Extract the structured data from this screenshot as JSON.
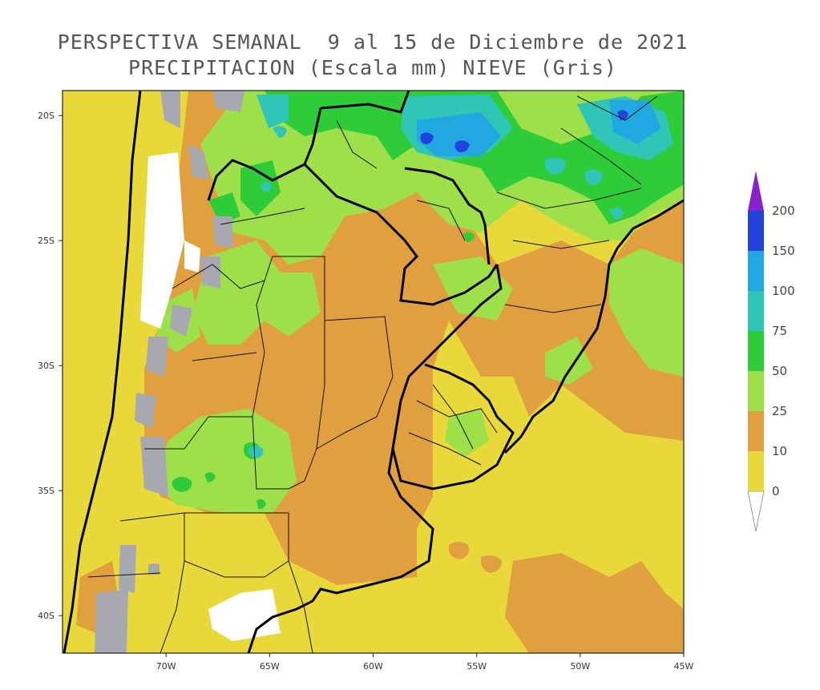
{
  "title": {
    "line1": "PERSPECTIVA SEMANAL  9 al 15 de Diciembre de 2021",
    "line2": "PRECIPITACION (Escala mm) NIEVE (Gris)"
  },
  "map": {
    "lon_range": [
      -75,
      -45
    ],
    "lat_range": [
      -41.5,
      -19
    ],
    "x_ticks": [
      {
        "lon": -70,
        "label": "70W"
      },
      {
        "lon": -65,
        "label": "65W"
      },
      {
        "lon": -60,
        "label": "60W"
      },
      {
        "lon": -55,
        "label": "55W"
      },
      {
        "lon": -50,
        "label": "50W"
      },
      {
        "lon": -45,
        "label": "45W"
      }
    ],
    "y_ticks": [
      {
        "lat": -20,
        "label": "20S"
      },
      {
        "lat": -25,
        "label": "25S"
      },
      {
        "lat": -30,
        "label": "30S"
      },
      {
        "lat": -35,
        "label": "35S"
      },
      {
        "lat": -40,
        "label": "40S"
      }
    ]
  },
  "legend": {
    "units": "mm",
    "snow_color": "#a8a8b0",
    "bins": [
      {
        "from": "0",
        "color": "#e8d83a"
      },
      {
        "from": "10",
        "color": "#e0a040"
      },
      {
        "from": "25",
        "color": "#9ee04a"
      },
      {
        "from": "50",
        "color": "#2fcc3a"
      },
      {
        "from": "75",
        "color": "#2fc6b8"
      },
      {
        "from": "100",
        "color": "#22a8e0"
      },
      {
        "from": "150",
        "color": "#2244dd"
      },
      {
        "from": "200",
        "color": "#8a22cc"
      }
    ]
  }
}
